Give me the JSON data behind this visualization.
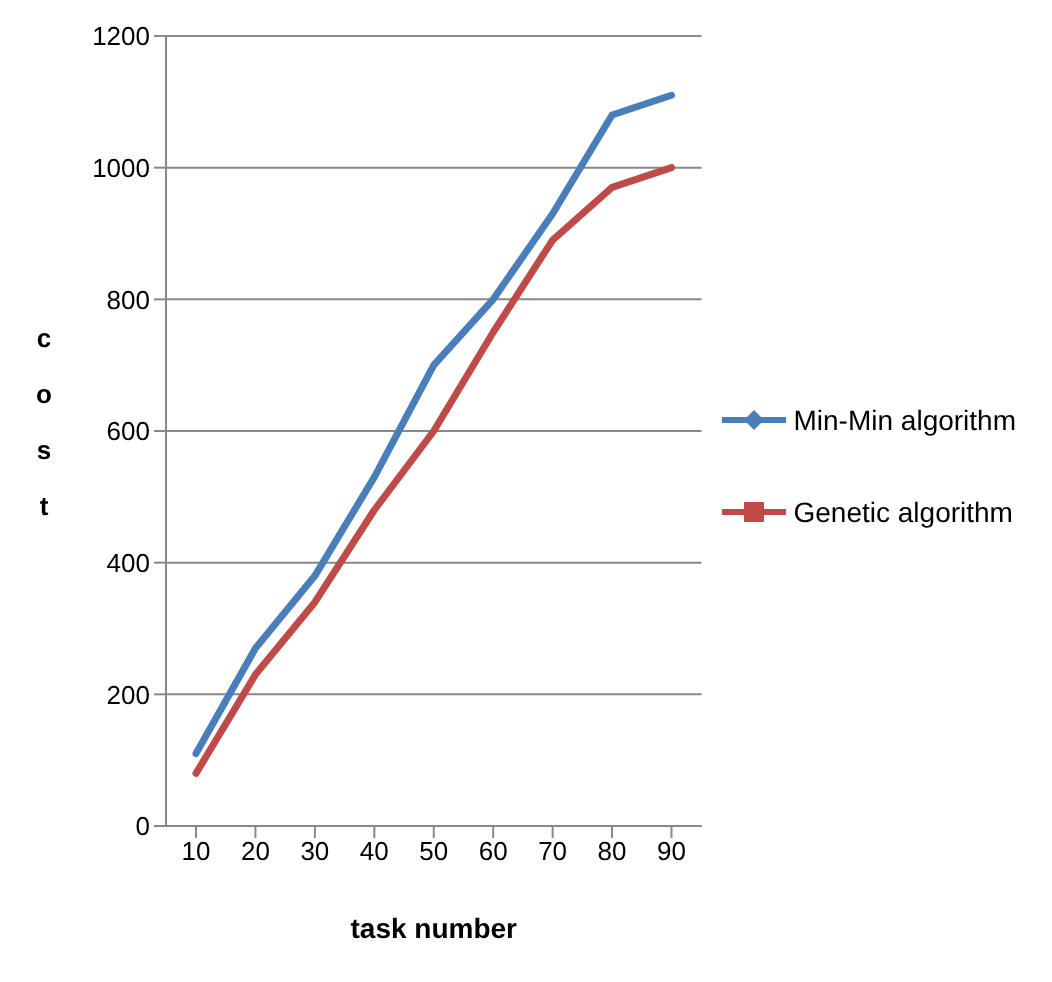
{
  "chart_data": {
    "type": "line",
    "xlabel": "task number",
    "ylabel": "cost",
    "categories": [
      "10",
      "20",
      "30",
      "40",
      "50",
      "60",
      "70",
      "80",
      "90"
    ],
    "series": [
      {
        "name": "Min-Min algorithm",
        "color": "#4a7ebb",
        "values": [
          110,
          270,
          380,
          530,
          700,
          800,
          930,
          1080,
          1110
        ]
      },
      {
        "name": "Genetic algorithm",
        "color": "#be4b48",
        "values": [
          80,
          230,
          340,
          480,
          600,
          750,
          890,
          970,
          1000
        ]
      }
    ],
    "ylim": [
      0,
      1200
    ],
    "yticks": [
      0,
      200,
      400,
      600,
      800,
      1000,
      1200
    ],
    "grid": "y",
    "legend": "right",
    "marker": "none",
    "line_style": "solid"
  }
}
